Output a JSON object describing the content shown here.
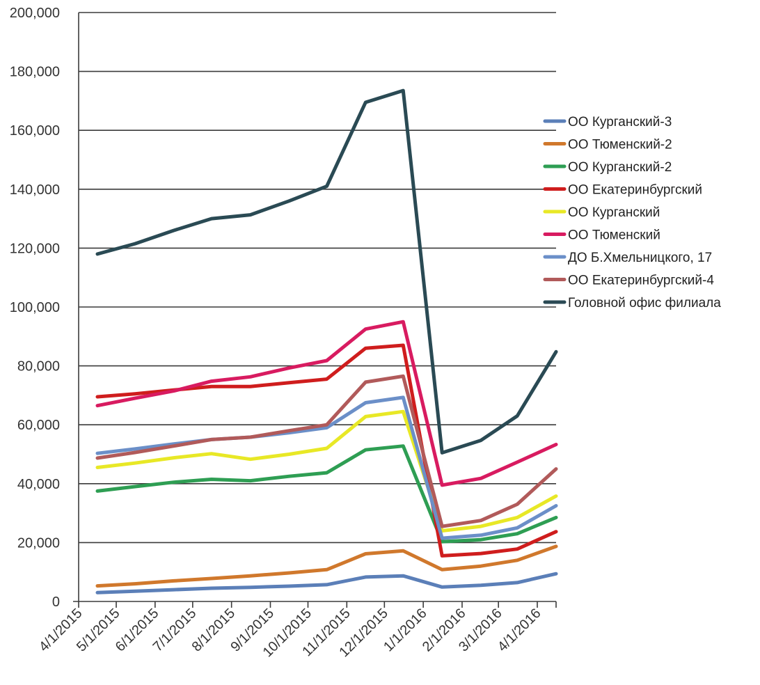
{
  "chart_data": {
    "type": "line",
    "title": "",
    "xlabel": "",
    "ylabel": "",
    "ylim": [
      0,
      200000
    ],
    "y_ticks": [
      "0",
      "20,000",
      "40,000",
      "60,000",
      "80,000",
      "100,000",
      "120,000",
      "140,000",
      "160,000",
      "180,000",
      "200,000"
    ],
    "y_tick_values": [
      0,
      20000,
      40000,
      60000,
      80000,
      100000,
      120000,
      140000,
      160000,
      180000,
      200000
    ],
    "grid": true,
    "legend_position": "right",
    "categories": [
      "4/1/2015",
      "5/1/2015",
      "6/1/2015",
      "7/1/2015",
      "8/1/2015",
      "9/1/2015",
      "10/1/2015",
      "11/1/2015",
      "12/1/2015",
      "1/1/2016",
      "2/1/2016",
      "3/1/2016",
      "4/1/2016"
    ],
    "x_positions_days": [
      0,
      30,
      61,
      91,
      122,
      153,
      183,
      214,
      244,
      275,
      306,
      335,
      366
    ],
    "point_dates_days": [
      15,
      45,
      76,
      106,
      137,
      168,
      198,
      229,
      259,
      290,
      321,
      350,
      381
    ],
    "x_domain_days": [
      0,
      381
    ],
    "series": [
      {
        "name": "ОО Курганский-3",
        "color": "#5b7fb8",
        "values": [
          3000,
          3500,
          4000,
          4500,
          4800,
          5200,
          5700,
          8300,
          8700,
          4900,
          5500,
          6400,
          9400
        ]
      },
      {
        "name": "ОО Тюменский-2",
        "color": "#d0782c",
        "values": [
          5300,
          6000,
          7000,
          7800,
          8700,
          9700,
          10800,
          16200,
          17200,
          10800,
          12000,
          14000,
          18700
        ]
      },
      {
        "name": "ОО Курганский-2",
        "color": "#2e9e53",
        "values": [
          37500,
          39000,
          40500,
          41500,
          41000,
          42500,
          43700,
          51500,
          52800,
          20300,
          21000,
          23000,
          28500
        ]
      },
      {
        "name": "ОО Екатеринбургский",
        "color": "#cf1d1d",
        "values": [
          69500,
          70500,
          71800,
          73000,
          73000,
          74300,
          75500,
          86000,
          87000,
          15500,
          16300,
          17800,
          23700
        ]
      },
      {
        "name": "ОО Курганский",
        "color": "#e8e826",
        "values": [
          45500,
          47000,
          48800,
          50200,
          48300,
          50000,
          52000,
          62800,
          64500,
          24000,
          25500,
          28500,
          35800
        ]
      },
      {
        "name": "ОО Тюменский",
        "color": "#d81b60",
        "values": [
          66500,
          69000,
          71500,
          74800,
          76300,
          79300,
          81800,
          92500,
          95000,
          39500,
          41800,
          47300,
          53300
        ]
      },
      {
        "name": "ДО Б.Хмельницкого, 17",
        "color": "#6b8fc8",
        "values": [
          50300,
          51800,
          53500,
          55000,
          55800,
          57300,
          59000,
          67500,
          69300,
          21500,
          22500,
          25000,
          32500
        ]
      },
      {
        "name": "ОО Екатеринбургский-4",
        "color": "#b15a5a",
        "values": [
          48700,
          50600,
          52800,
          55000,
          55800,
          58000,
          60000,
          74500,
          76500,
          25500,
          27500,
          33000,
          45000
        ]
      },
      {
        "name": "Головной офис филиала",
        "color": "#2a4a54",
        "values": [
          118000,
          121500,
          126000,
          130000,
          131300,
          136000,
          141000,
          169500,
          173500,
          50500,
          54700,
          63000,
          84800
        ]
      }
    ]
  }
}
